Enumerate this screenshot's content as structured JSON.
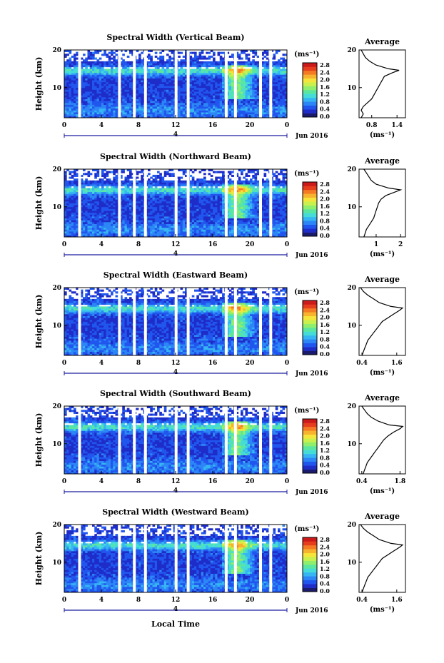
{
  "colors": {
    "scale": [
      "#1b1b6e",
      "#1e2cc8",
      "#2156ee",
      "#2c86f5",
      "#36b5f3",
      "#45dcd8",
      "#5be6a0",
      "#8fef6c",
      "#c9f04c",
      "#f5e43a",
      "#f7b32e",
      "#f57a24",
      "#e53d1d",
      "#cc1a1a"
    ],
    "line": "#000000",
    "axis_blue": "#1c1ca0"
  },
  "common": {
    "y_label": "Height (km)",
    "y_ticks": [
      "20",
      "10"
    ],
    "x_ticks": [
      "0",
      "4",
      "8",
      "12",
      "16",
      "20",
      "0"
    ],
    "day_marker": "4",
    "month_label": "Jun 2016",
    "unit": "(ms⁻¹)",
    "colorbar_ticks": [
      "2.8",
      "2.4",
      "2.0",
      "1.6",
      "1.2",
      "0.8",
      "0.4",
      "0.0"
    ],
    "x_axis_title": "Local Time",
    "profile_title": "Average"
  },
  "chart_data": [
    {
      "type": "heatmap",
      "title": "Spectral Width (Vertical Beam)",
      "ylim": [
        2,
        20
      ],
      "x_range_hours": [
        0,
        24
      ],
      "profile": {
        "xlabel": "(ms⁻¹)",
        "xticks": [
          "0.8",
          "1.4"
        ],
        "xlim": [
          0.5,
          1.6
        ],
        "points": [
          [
            0.55,
            2
          ],
          [
            0.6,
            3
          ],
          [
            0.55,
            4
          ],
          [
            0.6,
            5
          ],
          [
            0.7,
            6
          ],
          [
            0.8,
            7
          ],
          [
            0.85,
            8
          ],
          [
            0.9,
            9
          ],
          [
            0.95,
            10
          ],
          [
            1.0,
            11
          ],
          [
            1.05,
            12
          ],
          [
            1.1,
            13
          ],
          [
            1.3,
            14
          ],
          [
            1.45,
            14.6
          ],
          [
            1.2,
            15
          ],
          [
            0.9,
            16
          ],
          [
            0.75,
            17
          ],
          [
            0.65,
            18
          ],
          [
            0.6,
            19
          ],
          [
            0.55,
            20
          ]
        ]
      }
    },
    {
      "type": "heatmap",
      "title": "Spectral Width (Northward Beam)",
      "ylim": [
        2,
        20
      ],
      "x_range_hours": [
        0,
        24
      ],
      "profile": {
        "xlabel": "(ms⁻¹)",
        "xticks": [
          "1",
          "2"
        ],
        "xlim": [
          0.3,
          2.2
        ],
        "points": [
          [
            0.5,
            2
          ],
          [
            0.55,
            3
          ],
          [
            0.6,
            4
          ],
          [
            0.7,
            5
          ],
          [
            0.8,
            6
          ],
          [
            0.9,
            7
          ],
          [
            0.95,
            8
          ],
          [
            1.0,
            9
          ],
          [
            1.05,
            10
          ],
          [
            1.1,
            11
          ],
          [
            1.2,
            12
          ],
          [
            1.4,
            13
          ],
          [
            1.8,
            14
          ],
          [
            2.0,
            14.5
          ],
          [
            1.5,
            15
          ],
          [
            1.0,
            16
          ],
          [
            0.8,
            17
          ],
          [
            0.7,
            18
          ],
          [
            0.6,
            19
          ],
          [
            0.5,
            20
          ]
        ]
      }
    },
    {
      "type": "heatmap",
      "title": "Spectral Width (Eastward Beam)",
      "ylim": [
        2,
        20
      ],
      "x_range_hours": [
        0,
        24
      ],
      "profile": {
        "xlabel": "(ms⁻¹)",
        "xticks": [
          "0.4",
          "1.6"
        ],
        "xlim": [
          0.3,
          1.9
        ],
        "points": [
          [
            0.4,
            2
          ],
          [
            0.45,
            3
          ],
          [
            0.5,
            4
          ],
          [
            0.55,
            5
          ],
          [
            0.6,
            6
          ],
          [
            0.7,
            7
          ],
          [
            0.8,
            8
          ],
          [
            0.9,
            9
          ],
          [
            1.0,
            10
          ],
          [
            1.1,
            11
          ],
          [
            1.3,
            12
          ],
          [
            1.5,
            13
          ],
          [
            1.7,
            14
          ],
          [
            1.8,
            14.6
          ],
          [
            1.4,
            15
          ],
          [
            1.0,
            16
          ],
          [
            0.8,
            17
          ],
          [
            0.6,
            18
          ],
          [
            0.45,
            19
          ],
          [
            0.35,
            20
          ]
        ]
      }
    },
    {
      "type": "heatmap",
      "title": "Spectral Width (Southward Beam)",
      "ylim": [
        2,
        20
      ],
      "x_range_hours": [
        0,
        24
      ],
      "profile": {
        "xlabel": "(ms⁻¹)",
        "xticks": [
          "0.4",
          "1.8"
        ],
        "xlim": [
          0.3,
          2.0
        ],
        "points": [
          [
            0.45,
            2
          ],
          [
            0.5,
            3
          ],
          [
            0.55,
            4
          ],
          [
            0.6,
            5
          ],
          [
            0.7,
            6
          ],
          [
            0.8,
            7
          ],
          [
            0.9,
            8
          ],
          [
            1.0,
            9
          ],
          [
            1.1,
            10
          ],
          [
            1.2,
            11
          ],
          [
            1.35,
            12
          ],
          [
            1.55,
            13
          ],
          [
            1.8,
            14
          ],
          [
            1.9,
            14.6
          ],
          [
            1.4,
            15
          ],
          [
            1.0,
            16
          ],
          [
            0.75,
            17
          ],
          [
            0.6,
            18
          ],
          [
            0.5,
            19
          ],
          [
            0.4,
            20
          ]
        ]
      }
    },
    {
      "type": "heatmap",
      "title": "Spectral Width (Westward Beam)",
      "ylim": [
        2,
        20
      ],
      "x_range_hours": [
        0,
        24
      ],
      "profile": {
        "xlabel": "(ms⁻¹)",
        "xticks": [
          "0.4",
          "1.6"
        ],
        "xlim": [
          0.3,
          1.9
        ],
        "points": [
          [
            0.4,
            2
          ],
          [
            0.45,
            3
          ],
          [
            0.5,
            4
          ],
          [
            0.55,
            5
          ],
          [
            0.6,
            6
          ],
          [
            0.7,
            7
          ],
          [
            0.8,
            8
          ],
          [
            0.9,
            9
          ],
          [
            1.0,
            10
          ],
          [
            1.1,
            11
          ],
          [
            1.3,
            12
          ],
          [
            1.5,
            13
          ],
          [
            1.7,
            14
          ],
          [
            1.8,
            14.6
          ],
          [
            1.4,
            15
          ],
          [
            1.0,
            16
          ],
          [
            0.8,
            17
          ],
          [
            0.6,
            18
          ],
          [
            0.45,
            19
          ],
          [
            0.35,
            20
          ]
        ]
      }
    }
  ]
}
